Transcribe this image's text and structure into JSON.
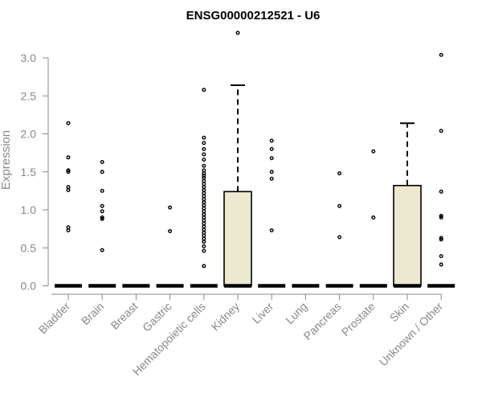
{
  "chart_data": {
    "type": "box",
    "title": "ENSG00000212521 - U6",
    "xlabel": "",
    "ylabel": "Expression",
    "ylim": [
      0,
      3.3
    ],
    "yticks": [
      "0.0",
      "0.5",
      "1.0",
      "1.5",
      "2.0",
      "2.5",
      "3.0"
    ],
    "grid": false,
    "box_fill": "#ede8d0",
    "categories": [
      "Bladder",
      "Brain",
      "Breast",
      "Gastric",
      "Hematopoietic cells",
      "Kidney",
      "Liver",
      "Lung",
      "Pancreas",
      "Prostate",
      "Skin",
      "Unknown / Other"
    ],
    "boxes": [
      {
        "q1": 0,
        "median": 0,
        "q3": 0,
        "whisker_low": 0,
        "whisker_high": 0,
        "outliers": [
          2.14,
          1.69,
          1.52,
          1.5,
          1.3,
          1.26,
          0.77,
          0.73
        ]
      },
      {
        "q1": 0,
        "median": 0,
        "q3": 0,
        "whisker_low": 0,
        "whisker_high": 0,
        "outliers": [
          1.63,
          1.5,
          1.25,
          1.05,
          0.98,
          0.9,
          0.88,
          0.47
        ]
      },
      {
        "q1": 0,
        "median": 0,
        "q3": 0,
        "whisker_low": 0,
        "whisker_high": 0,
        "outliers": []
      },
      {
        "q1": 0,
        "median": 0,
        "q3": 0,
        "whisker_low": 0,
        "whisker_high": 0,
        "outliers": [
          1.03,
          0.72
        ]
      },
      {
        "q1": 0,
        "median": 0,
        "q3": 0,
        "whisker_low": 0,
        "whisker_high": 0,
        "outliers": [
          2.58,
          1.95,
          1.88,
          1.8,
          1.73,
          1.66,
          1.58,
          1.52,
          1.48,
          1.45,
          1.42,
          1.38,
          1.34,
          1.3,
          1.26,
          1.22,
          1.18,
          1.14,
          1.1,
          1.06,
          1.02,
          0.98,
          0.94,
          0.9,
          0.86,
          0.82,
          0.78,
          0.74,
          0.7,
          0.66,
          0.62,
          0.58,
          0.52,
          0.46,
          0.26
        ]
      },
      {
        "q1": 0,
        "median": 0,
        "q3": 1.24,
        "whisker_low": 0,
        "whisker_high": 2.64,
        "outliers": [
          3.33
        ]
      },
      {
        "q1": 0,
        "median": 0,
        "q3": 0,
        "whisker_low": 0,
        "whisker_high": 0,
        "outliers": [
          1.91,
          1.8,
          1.68,
          1.5,
          1.41,
          0.73
        ]
      },
      {
        "q1": 0,
        "median": 0,
        "q3": 0,
        "whisker_low": 0,
        "whisker_high": 0,
        "outliers": []
      },
      {
        "q1": 0,
        "median": 0,
        "q3": 0,
        "whisker_low": 0,
        "whisker_high": 0,
        "outliers": [
          1.48,
          1.05,
          0.64
        ]
      },
      {
        "q1": 0,
        "median": 0,
        "q3": 0,
        "whisker_low": 0,
        "whisker_high": 0,
        "outliers": [
          1.77,
          0.9
        ]
      },
      {
        "q1": 0,
        "median": 0,
        "q3": 1.32,
        "whisker_low": 0,
        "whisker_high": 2.14,
        "outliers": []
      },
      {
        "q1": 0,
        "median": 0,
        "q3": 0,
        "whisker_low": 0,
        "whisker_high": 0,
        "outliers": [
          3.04,
          2.04,
          1.24,
          0.92,
          0.9,
          0.63,
          0.61,
          0.39,
          0.28
        ]
      }
    ]
  }
}
